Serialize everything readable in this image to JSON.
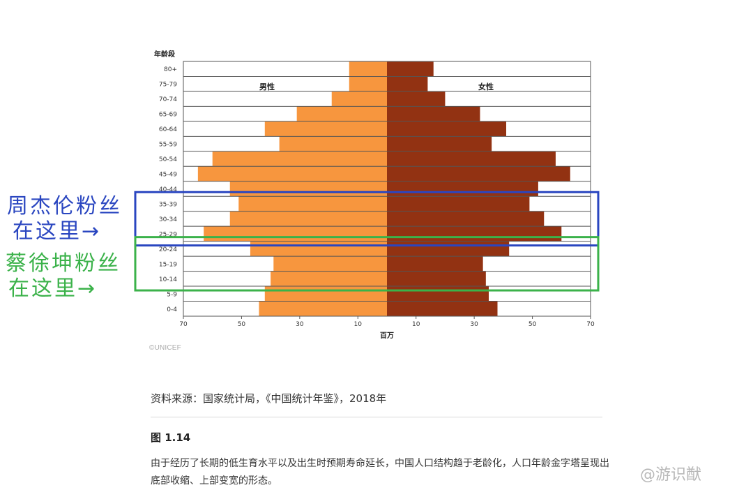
{
  "chart_data": {
    "type": "bar",
    "title": "",
    "y_axis_title": "年龄段",
    "xlabel": "百万",
    "x_ticks": [
      "70",
      "50",
      "30",
      "10",
      "10",
      "30",
      "50",
      "70"
    ],
    "xlim": [
      -70,
      70
    ],
    "categories": [
      "80+",
      "75-79",
      "70-74",
      "65-69",
      "60-64",
      "55-59",
      "50-54",
      "45-49",
      "40-44",
      "35-39",
      "30-34",
      "25-29",
      "20-24",
      "15-19",
      "10-14",
      "5-9",
      "0-4"
    ],
    "series": [
      {
        "name": "男性",
        "color": "#f7963e",
        "values": [
          13,
          13,
          19,
          31,
          42,
          37,
          60,
          65,
          54,
          51,
          54,
          63,
          47,
          39,
          40,
          42,
          44
        ]
      },
      {
        "name": "女性",
        "color": "#923212",
        "values": [
          16,
          14,
          20,
          32,
          41,
          36,
          58,
          63,
          52,
          49,
          54,
          60,
          42,
          33,
          34,
          35,
          38
        ]
      }
    ],
    "grid": true,
    "legend": "inside-top"
  },
  "footer": {
    "copyright": "©UNICEF",
    "source": "资料来源：国家统计局，《中国统计年鉴》，2018年",
    "figure_label": "图 1.14",
    "caption": "由于经历了长期的低生育水平以及出生时预期寿命延长，中国人口结构趋于老龄化，人口年龄金字塔呈现出底部收缩、上部变宽的形态。"
  },
  "annotations": {
    "blue": {
      "line1": "周杰伦粉丝",
      "line2": "在这里→",
      "color": "#2a46c0",
      "from_category": "35-39",
      "to_category": "25-29"
    },
    "green": {
      "line1": "蔡徐坤粉丝",
      "line2": "在这里→",
      "color": "#3bb24a",
      "from_category": "20-24",
      "to_category": "10-14"
    }
  },
  "watermark": "@游识猷"
}
